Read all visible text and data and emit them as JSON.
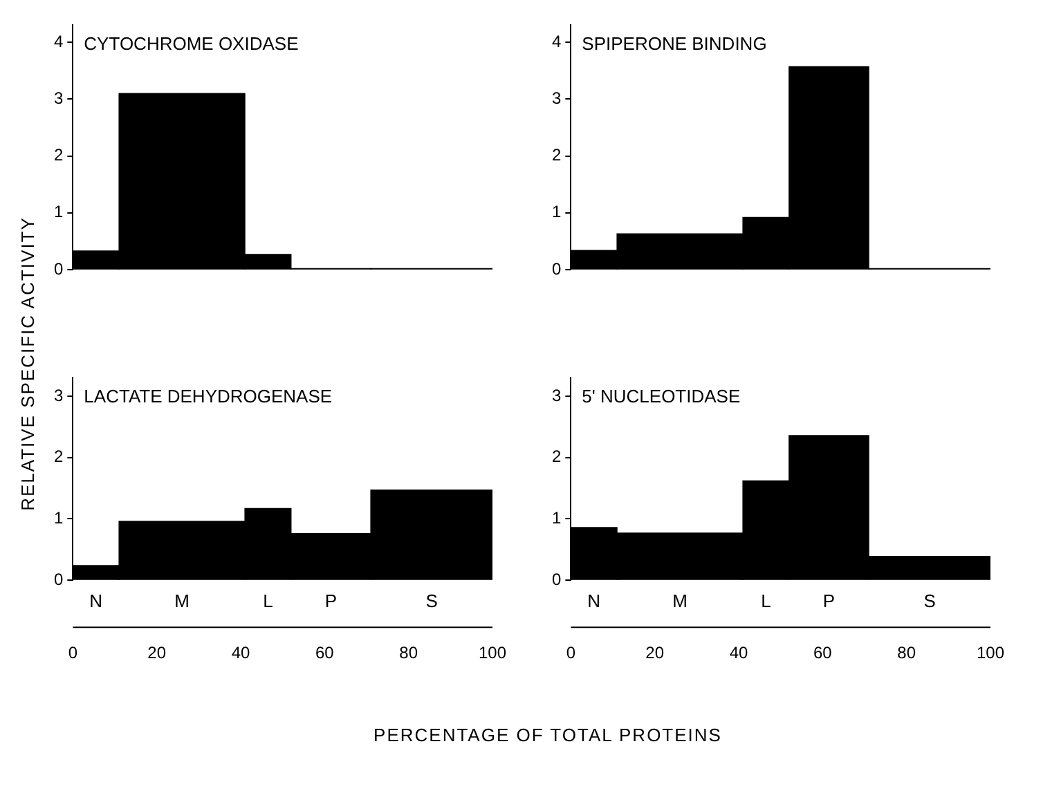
{
  "chart_data": [
    {
      "type": "histogram",
      "title": "CYTOCHROME OXIDASE",
      "ylabel": "RELATIVE SPECIFIC ACTIVITY",
      "bins": [
        0,
        11,
        41,
        52,
        71,
        100
      ],
      "values": [
        0.33,
        3.1,
        0.27,
        0.02,
        0.02
      ],
      "color": "#000000",
      "xlim": [
        0,
        100
      ],
      "ylim": [
        0,
        4.3
      ],
      "yticks": [
        0,
        1,
        2,
        3,
        4
      ],
      "tick_labels": "y"
    },
    {
      "type": "histogram",
      "title": "SPIPERONE BINDING",
      "bins": [
        0,
        11,
        41,
        52,
        71,
        100
      ],
      "values": [
        0.34,
        0.63,
        0.92,
        3.57,
        0.02
      ],
      "color": "#000000",
      "xlim": [
        0,
        100
      ],
      "ylim": [
        0,
        4.3
      ],
      "yticks": [
        0,
        1,
        2,
        3,
        4
      ],
      "tick_labels": "y"
    },
    {
      "type": "histogram",
      "title": "LACTATE DEHYDROGENASE",
      "xlabel": "PERCENTAGE OF TOTAL PROTEINS",
      "bins": [
        0,
        11,
        41,
        52,
        71,
        100
      ],
      "values": [
        0.24,
        0.96,
        1.17,
        0.76,
        1.47
      ],
      "color": "#000000",
      "xlim": [
        0,
        100
      ],
      "xticks": [
        0,
        20,
        40,
        60,
        80,
        100
      ],
      "ylim": [
        0,
        3.3
      ],
      "yticks": [
        0,
        1,
        2,
        3
      ],
      "annotations": [
        "N",
        "M",
        "L",
        "P",
        "S"
      ]
    },
    {
      "type": "histogram",
      "title": "5' NUCLEOTIDASE",
      "bins": [
        0,
        11,
        41,
        52,
        71,
        100
      ],
      "values": [
        0.86,
        0.77,
        1.62,
        2.36,
        0.39
      ],
      "color": "#000000",
      "xlim": [
        0,
        100
      ],
      "xticks": [
        0,
        20,
        40,
        60,
        80,
        100
      ],
      "ylim": [
        0,
        3.3
      ],
      "yticks": [
        0,
        1,
        2,
        3
      ],
      "annotations": [
        "N",
        "M",
        "L",
        "P",
        "S"
      ]
    }
  ]
}
